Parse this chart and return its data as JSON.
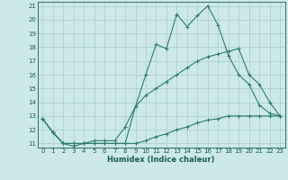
{
  "xlabel": "Humidex (Indice chaleur)",
  "ylabel": "",
  "background_color": "#cce8e8",
  "grid_color": "#aacccc",
  "line_color": "#2e7d6e",
  "xlim": [
    -0.5,
    23.5
  ],
  "ylim": [
    10.7,
    21.3
  ],
  "yticks": [
    11,
    12,
    13,
    14,
    15,
    16,
    17,
    18,
    19,
    20,
    21
  ],
  "xticks": [
    0,
    1,
    2,
    3,
    4,
    5,
    6,
    7,
    8,
    9,
    10,
    11,
    12,
    13,
    14,
    15,
    16,
    17,
    18,
    19,
    20,
    21,
    22,
    23
  ],
  "series1_x": [
    0,
    1,
    2,
    3,
    4,
    5,
    6,
    7,
    8,
    9,
    10,
    11,
    12,
    13,
    14,
    15,
    16,
    17,
    18,
    19,
    20,
    21,
    22,
    23
  ],
  "series1_y": [
    12.8,
    11.8,
    11.0,
    10.8,
    11.0,
    11.0,
    11.0,
    11.0,
    11.0,
    13.7,
    16.0,
    18.2,
    17.9,
    20.4,
    19.5,
    20.3,
    21.0,
    19.6,
    17.4,
    16.0,
    15.3,
    13.8,
    13.2,
    13.0
  ],
  "series2_x": [
    0,
    1,
    2,
    3,
    4,
    5,
    6,
    7,
    8,
    9,
    10,
    11,
    12,
    13,
    14,
    15,
    16,
    17,
    18,
    19,
    20,
    21,
    22,
    23
  ],
  "series2_y": [
    12.8,
    11.8,
    11.0,
    11.0,
    11.0,
    11.2,
    11.2,
    11.2,
    12.2,
    13.7,
    14.5,
    15.0,
    15.5,
    16.0,
    16.5,
    17.0,
    17.3,
    17.5,
    17.7,
    17.9,
    16.0,
    15.3,
    14.0,
    13.0
  ],
  "series3_x": [
    0,
    1,
    2,
    3,
    4,
    5,
    6,
    7,
    8,
    9,
    10,
    11,
    12,
    13,
    14,
    15,
    16,
    17,
    18,
    19,
    20,
    21,
    22,
    23
  ],
  "series3_y": [
    12.8,
    11.8,
    11.0,
    11.0,
    11.0,
    11.0,
    11.0,
    11.0,
    11.0,
    11.0,
    11.2,
    11.5,
    11.7,
    12.0,
    12.2,
    12.5,
    12.7,
    12.8,
    13.0,
    13.0,
    13.0,
    13.0,
    13.0,
    13.0
  ],
  "tick_fontsize": 5.0,
  "xlabel_fontsize": 6.0,
  "tick_color": "#1a5c55",
  "spine_color": "#1a5c55"
}
